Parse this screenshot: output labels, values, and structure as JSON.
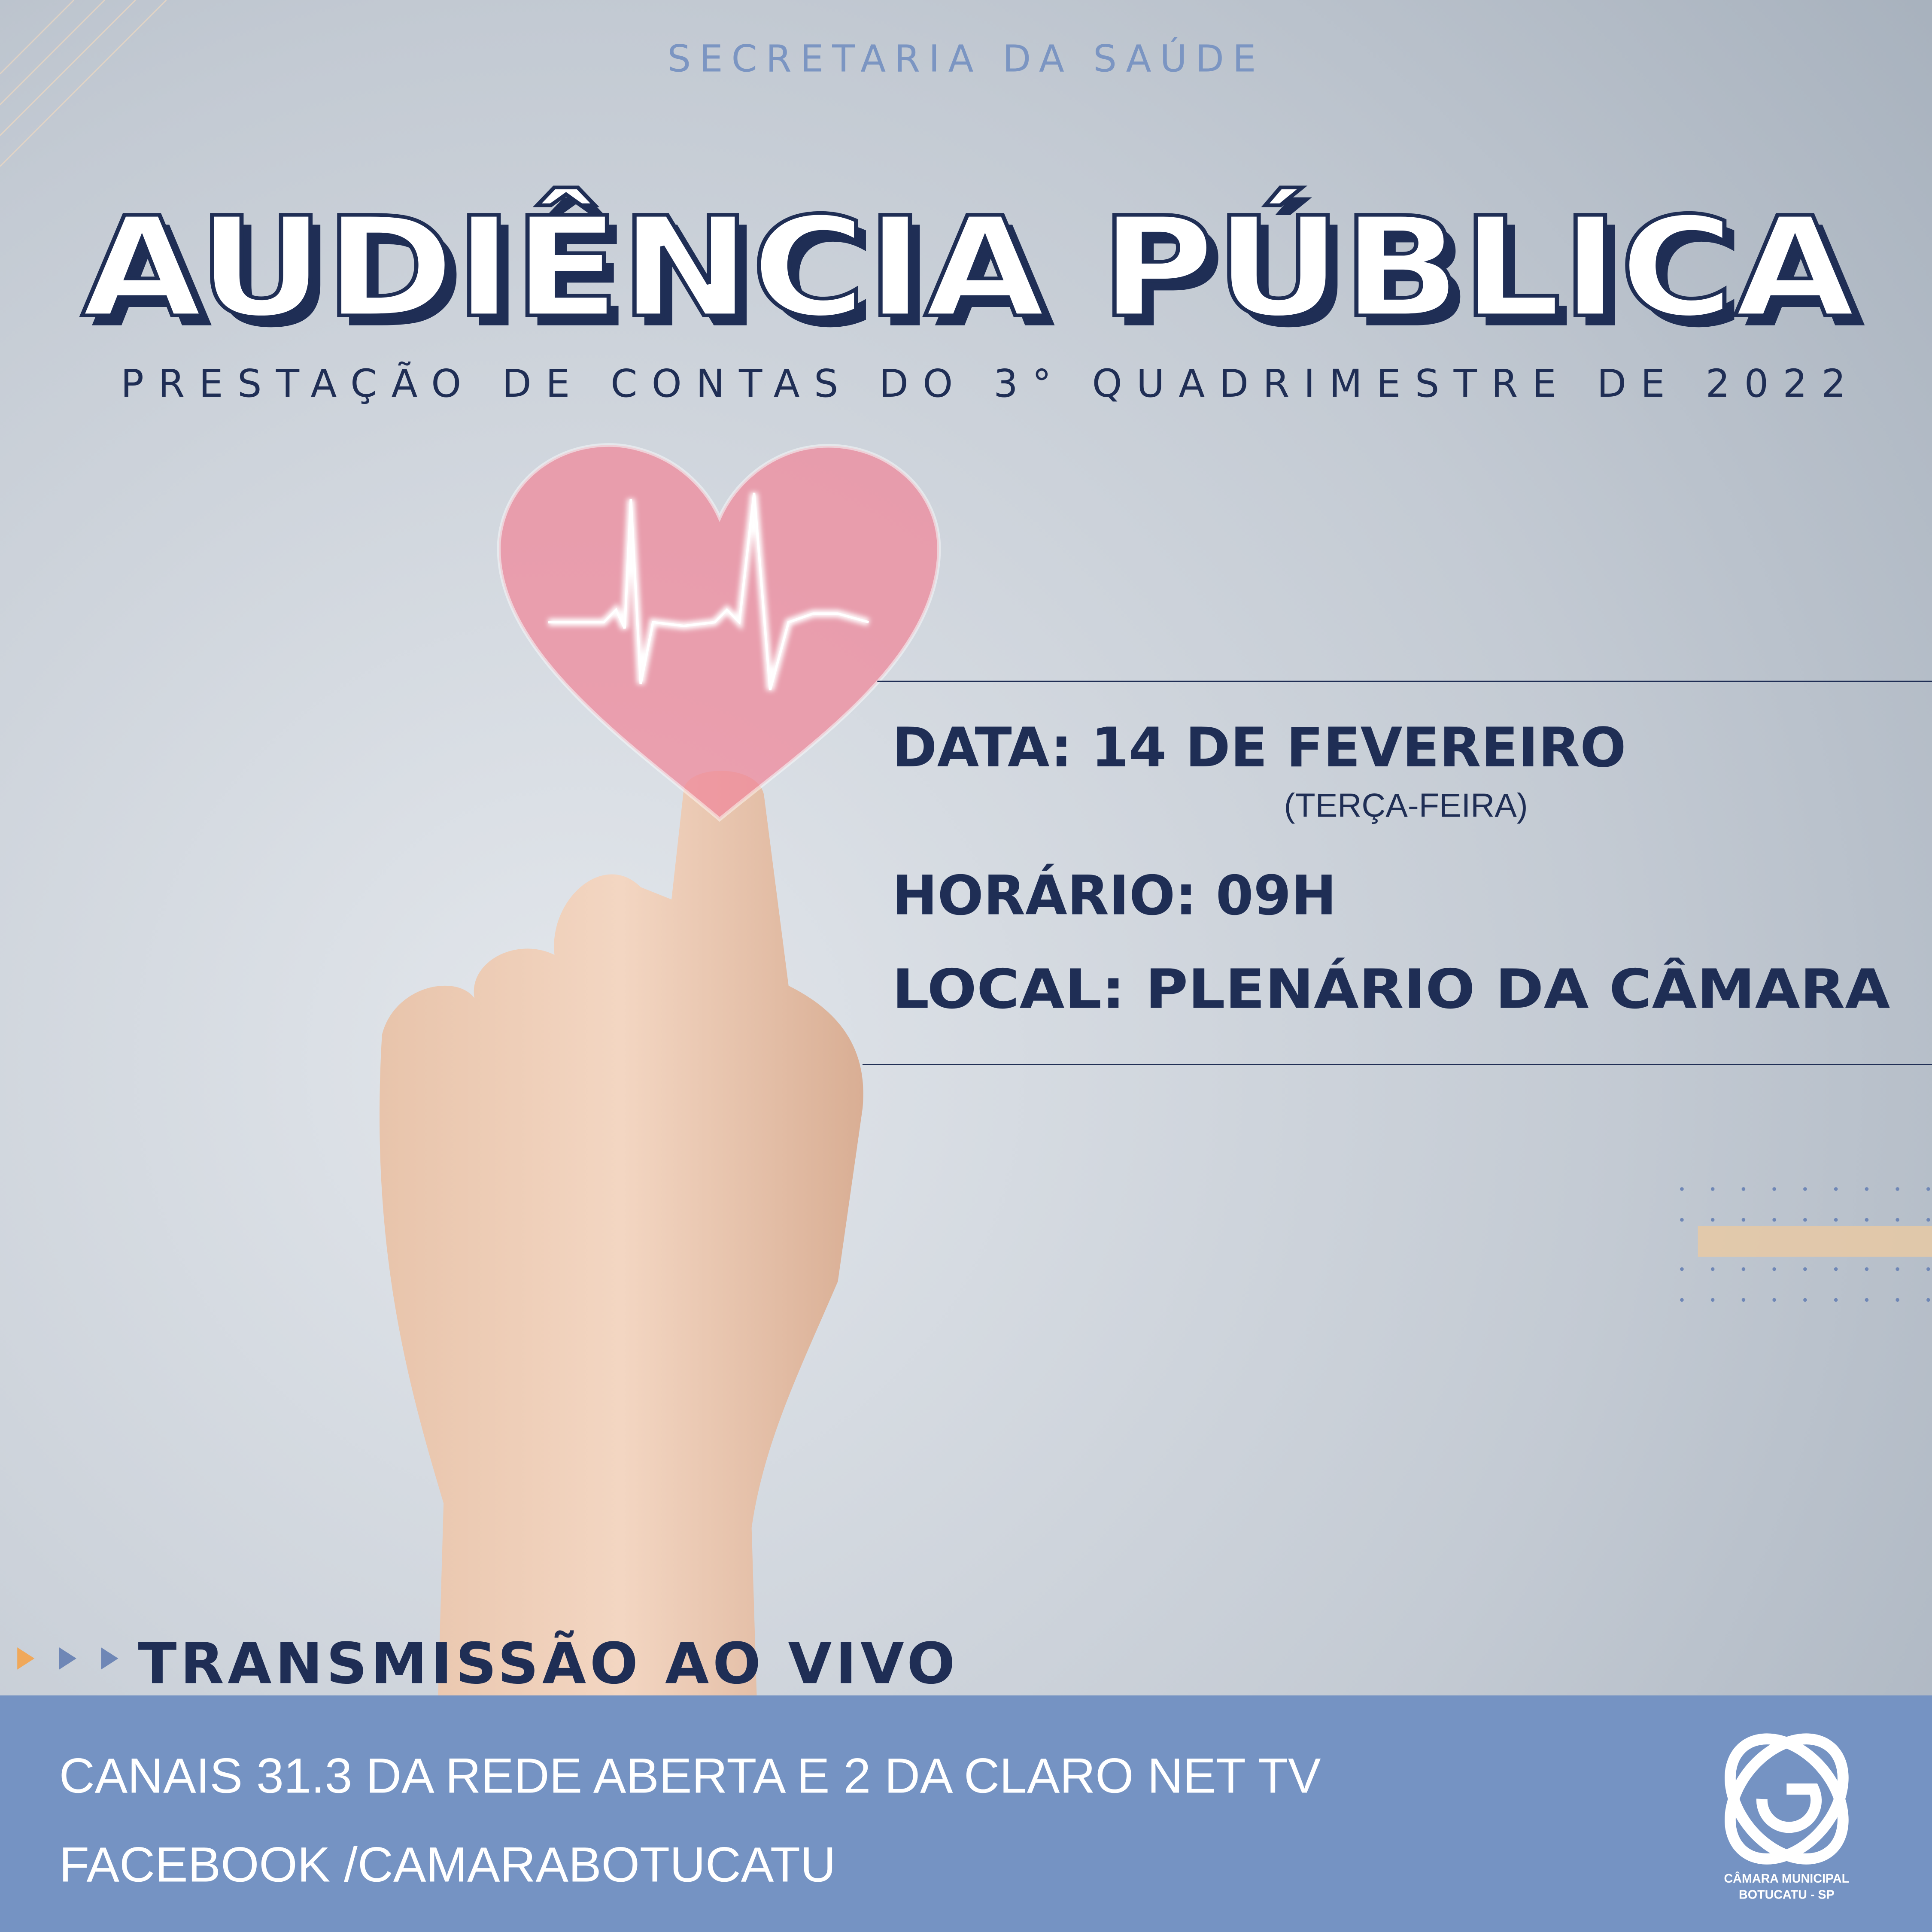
{
  "header": {
    "department": "SECRETARIA DA SAÚDE",
    "title": "AUDIÊNCIA PÚBLICA",
    "subtitle": "PRESTAÇÃO DE CONTAS DO 3° QUADRIMESTRE DE 2022"
  },
  "details": {
    "date": "DATA: 14 DE FEVEREIRO",
    "weekday": "(TERÇA-FEIRA)",
    "time": "HORÁRIO: 09H",
    "place": "LOCAL: PLENÁRIO DA CÂMARA"
  },
  "broadcast": {
    "heading": "TRANSMISSÃO AO VIVO",
    "lines": [
      "CANAIS 31.3 DA REDE ABERTA E 2 DA CLARO NET TV",
      "FACEBOOK /CAMARABOTUCATU"
    ]
  },
  "logo": {
    "name": "CÂMARA MUNICIPAL",
    "location": "BOTUCATU - SP"
  }
}
